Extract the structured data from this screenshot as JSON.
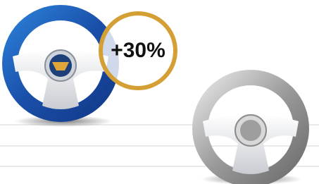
{
  "badge": {
    "label": "+30%"
  }
}
